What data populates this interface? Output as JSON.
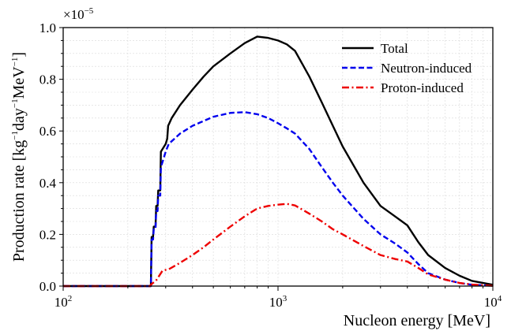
{
  "chart_data": {
    "type": "line",
    "xscale": "log",
    "xlim": [
      100,
      10000
    ],
    "ylim": [
      0.0,
      1.0
    ],
    "y_multiplier": "×10",
    "y_multiplier_exp": "−5",
    "xlabel": "Nucleon energy [MeV]",
    "ylabel": {
      "t1": "Production rate [kg",
      "e1": "−1",
      "t2": "day",
      "e2": "−1",
      "t3": "MeV",
      "e3": "−1",
      "t4": "]"
    },
    "x_ticks": [
      {
        "value": 100,
        "base": "10",
        "exp": "2"
      },
      {
        "value": 1000,
        "base": "10",
        "exp": "3"
      },
      {
        "value": 10000,
        "base": "10",
        "exp": "4"
      }
    ],
    "y_ticks": [
      {
        "value": 0.0,
        "label": "0.0"
      },
      {
        "value": 0.2,
        "label": "0.2"
      },
      {
        "value": 0.4,
        "label": "0.4"
      },
      {
        "value": 0.6,
        "label": "0.6"
      },
      {
        "value": 0.8,
        "label": "0.8"
      },
      {
        "value": 1.0,
        "label": "1.0"
      }
    ],
    "grid": true,
    "legend_position": "top-right",
    "series": [
      {
        "name": "Total",
        "color": "#000000",
        "style": "solid",
        "points": [
          [
            100,
            0
          ],
          [
            254,
            0
          ],
          [
            256,
            0.0
          ],
          [
            258,
            0.19
          ],
          [
            262,
            0.19
          ],
          [
            264,
            0.23
          ],
          [
            269,
            0.23
          ],
          [
            271,
            0.31
          ],
          [
            275,
            0.31
          ],
          [
            277,
            0.37
          ],
          [
            283,
            0.37
          ],
          [
            285,
            0.52
          ],
          [
            290,
            0.53
          ],
          [
            300,
            0.55
          ],
          [
            305,
            0.57
          ],
          [
            308,
            0.62
          ],
          [
            312,
            0.63
          ],
          [
            320,
            0.65
          ],
          [
            350,
            0.7
          ],
          [
            400,
            0.76
          ],
          [
            450,
            0.81
          ],
          [
            500,
            0.85
          ],
          [
            600,
            0.9
          ],
          [
            700,
            0.94
          ],
          [
            800,
            0.965
          ],
          [
            900,
            0.96
          ],
          [
            1000,
            0.95
          ],
          [
            1100,
            0.935
          ],
          [
            1200,
            0.91
          ],
          [
            1400,
            0.81
          ],
          [
            1600,
            0.71
          ],
          [
            1800,
            0.62
          ],
          [
            2000,
            0.54
          ],
          [
            2500,
            0.4
          ],
          [
            3000,
            0.31
          ],
          [
            3500,
            0.27
          ],
          [
            4000,
            0.235
          ],
          [
            4500,
            0.17
          ],
          [
            5000,
            0.12
          ],
          [
            6000,
            0.07
          ],
          [
            7000,
            0.04
          ],
          [
            8000,
            0.02
          ],
          [
            10000,
            0.005
          ]
        ]
      },
      {
        "name": "Neutron-induced",
        "color": "#0000ee",
        "style": "dashed",
        "points": [
          [
            100,
            0
          ],
          [
            254,
            0
          ],
          [
            256,
            0.0
          ],
          [
            258,
            0.18
          ],
          [
            262,
            0.18
          ],
          [
            264,
            0.22
          ],
          [
            269,
            0.22
          ],
          [
            271,
            0.29
          ],
          [
            275,
            0.29
          ],
          [
            277,
            0.35
          ],
          [
            283,
            0.35
          ],
          [
            285,
            0.46
          ],
          [
            290,
            0.48
          ],
          [
            300,
            0.52
          ],
          [
            310,
            0.55
          ],
          [
            350,
            0.59
          ],
          [
            400,
            0.62
          ],
          [
            500,
            0.655
          ],
          [
            600,
            0.67
          ],
          [
            700,
            0.673
          ],
          [
            800,
            0.665
          ],
          [
            900,
            0.65
          ],
          [
            1000,
            0.63
          ],
          [
            1100,
            0.61
          ],
          [
            1200,
            0.59
          ],
          [
            1400,
            0.53
          ],
          [
            1600,
            0.46
          ],
          [
            1800,
            0.4
          ],
          [
            2000,
            0.35
          ],
          [
            2500,
            0.26
          ],
          [
            3000,
            0.2
          ],
          [
            3500,
            0.165
          ],
          [
            4000,
            0.13
          ],
          [
            4500,
            0.085
          ],
          [
            5000,
            0.05
          ],
          [
            6000,
            0.025
          ],
          [
            7000,
            0.012
          ],
          [
            8000,
            0.005
          ],
          [
            10000,
            0.001
          ]
        ]
      },
      {
        "name": "Proton-induced",
        "color": "#ee0000",
        "style": "dashdot",
        "points": [
          [
            100,
            0
          ],
          [
            254,
            0
          ],
          [
            256,
            0.005
          ],
          [
            260,
            0.01
          ],
          [
            270,
            0.02
          ],
          [
            275,
            0.03
          ],
          [
            285,
            0.05
          ],
          [
            290,
            0.06
          ],
          [
            310,
            0.065
          ],
          [
            350,
            0.09
          ],
          [
            400,
            0.12
          ],
          [
            450,
            0.15
          ],
          [
            500,
            0.18
          ],
          [
            600,
            0.23
          ],
          [
            700,
            0.27
          ],
          [
            800,
            0.3
          ],
          [
            900,
            0.31
          ],
          [
            1000,
            0.315
          ],
          [
            1100,
            0.318
          ],
          [
            1200,
            0.312
          ],
          [
            1400,
            0.28
          ],
          [
            1600,
            0.25
          ],
          [
            1800,
            0.22
          ],
          [
            2000,
            0.2
          ],
          [
            2500,
            0.155
          ],
          [
            3000,
            0.12
          ],
          [
            3500,
            0.105
          ],
          [
            4000,
            0.095
          ],
          [
            4500,
            0.07
          ],
          [
            5000,
            0.045
          ],
          [
            6000,
            0.025
          ],
          [
            7000,
            0.012
          ],
          [
            8000,
            0.006
          ],
          [
            10000,
            0.001
          ]
        ]
      }
    ]
  }
}
